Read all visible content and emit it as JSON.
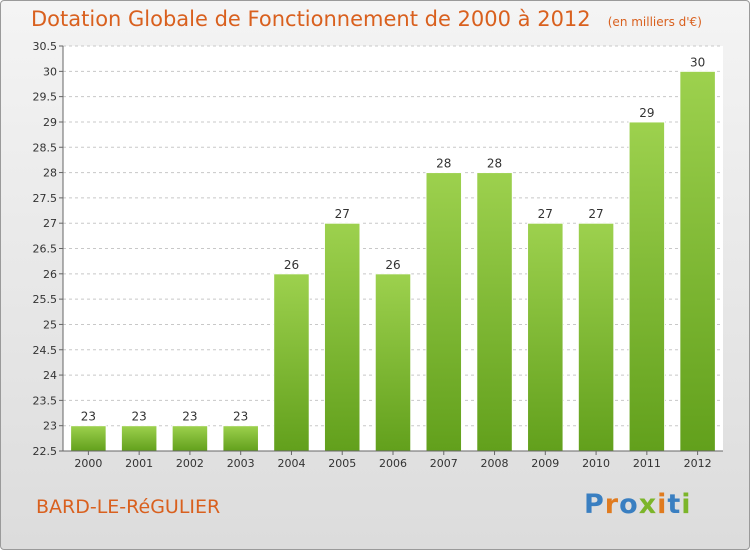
{
  "header": {
    "title": "Dotation Globale de Fonctionnement de 2000 à 2012",
    "unit": "(en milliers d'€)"
  },
  "footer": {
    "commune": "BARD-LE-RéGULIER",
    "logo": "Proxiti"
  },
  "colors": {
    "title": "#d9601e",
    "bar_top": "#9dd14e",
    "bar_bottom": "#62a01c",
    "bar_border": "#ffffff",
    "logo_letters": [
      "#3a7fc1",
      "#e07b1f",
      "#3a7fc1",
      "#7cb52a",
      "#e07b1f",
      "#3a7fc1",
      "#7cb52a"
    ]
  },
  "chart_data": {
    "type": "bar",
    "title": "Dotation Globale de Fonctionnement de 2000 à 2012",
    "subtitle": "(en milliers d'€)",
    "categories": [
      "2000",
      "2001",
      "2002",
      "2003",
      "2004",
      "2005",
      "2006",
      "2007",
      "2008",
      "2009",
      "2010",
      "2011",
      "2012"
    ],
    "values": [
      23,
      23,
      23,
      23,
      26,
      27,
      26,
      28,
      28,
      27,
      27,
      29,
      30
    ],
    "data_labels": [
      "23",
      "23",
      "23",
      "23",
      "26",
      "27",
      "26",
      "28",
      "28",
      "27",
      "27",
      "29",
      "30"
    ],
    "yticks": [
      "22.5",
      "23",
      "23.5",
      "24",
      "24.5",
      "25",
      "25.5",
      "26",
      "26.5",
      "27",
      "27.5",
      "28",
      "28.5",
      "29",
      "29.5",
      "30",
      "30.5"
    ],
    "ylim": [
      22.5,
      30.5
    ],
    "grid": true,
    "xlabel": "",
    "ylabel": ""
  }
}
